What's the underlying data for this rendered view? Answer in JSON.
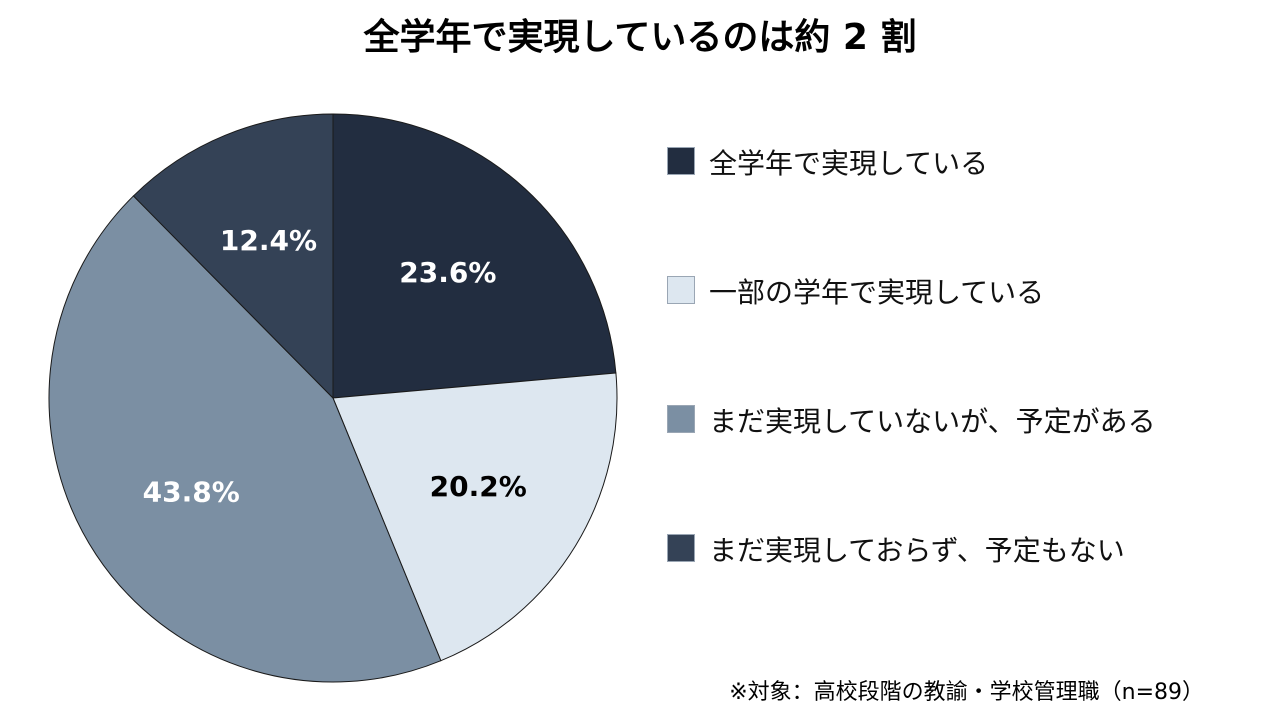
{
  "chart_data": {
    "type": "pie",
    "title": "全学年で実現しているのは約 2 割",
    "categories": [
      "全学年で実現している",
      "一部の学年で実現している",
      "まだ実現していないが、予定がある",
      "まだ実現しておらず、予定もない"
    ],
    "values": [
      23.6,
      20.2,
      43.8,
      12.4
    ],
    "value_labels": [
      "23.6%",
      "20.2%",
      "43.8%",
      "12.4%"
    ],
    "colors": [
      "#222d40",
      "#dde7f0",
      "#7b8fa3",
      "#344256"
    ],
    "label_colors": [
      "#ffffff",
      "#000000",
      "#ffffff",
      "#ffffff"
    ],
    "start_angle_deg": 0,
    "direction": "clockwise",
    "legend_position": "right"
  },
  "footnote": "※対象：高校段階の教諭・学校管理職（n=89）"
}
